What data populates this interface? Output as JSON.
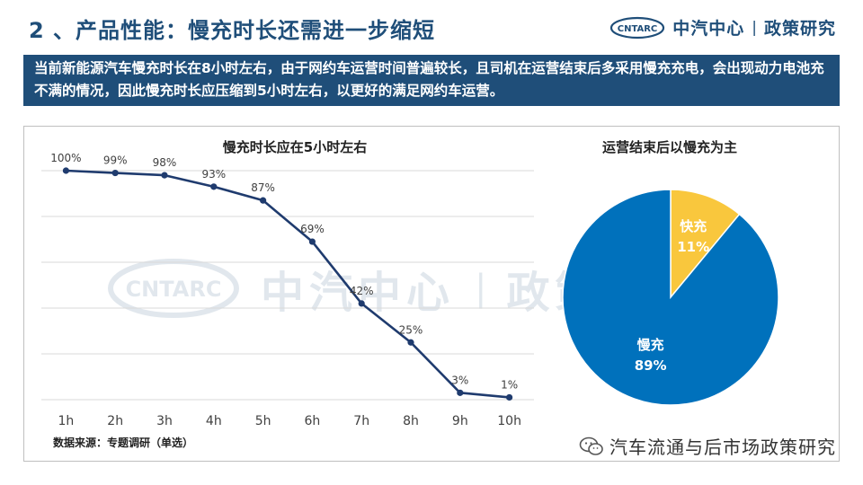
{
  "header": {
    "title": "2 、产品性能：慢充时长还需进一步缩短",
    "brand_logo_text": "CNTARC",
    "brand_name": "中汽中心",
    "brand_separator": "|",
    "brand_sub": "政策研究"
  },
  "banner": {
    "text": "当前新能源汽车慢充时长在8小时左右，由于网约车运营时间普遍较长，且司机在运营结束后多采用慢充充电，会出现动力电池充不满的情况，因此慢充时长应压缩到5小时左右，以更好的满足网约车运营。"
  },
  "watermark": {
    "logo_text": "CNTARC",
    "name": "中汽中心",
    "separator": "|",
    "sub": "政策研究"
  },
  "chart_data": [
    {
      "type": "line",
      "title": "慢充时长应在5小时左右",
      "categories": [
        "1h",
        "2h",
        "3h",
        "4h",
        "5h",
        "6h",
        "7h",
        "8h",
        "9h",
        "10h"
      ],
      "values": [
        100,
        99,
        98,
        93,
        87,
        69,
        42,
        25,
        3,
        1
      ],
      "value_labels": [
        "100%",
        "99%",
        "98%",
        "93%",
        "87%",
        "69%",
        "42%",
        "25%",
        "3%",
        "1%"
      ],
      "ylim": [
        0,
        100
      ],
      "grid": true,
      "line_color": "#1f3b6e"
    },
    {
      "type": "pie",
      "title": "运营结束后以慢充为主",
      "slices": [
        {
          "label": "快充",
          "value": 11,
          "value_label": "11%",
          "color": "#f9c73d"
        },
        {
          "label": "慢充",
          "value": 89,
          "value_label": "89%",
          "color": "#0071bc"
        }
      ]
    }
  ],
  "source": "数据来源：专题调研（单选）",
  "footer": {
    "icon": "wechat-icon",
    "text": "汽车流通与后市场政策研究"
  },
  "colors": {
    "primary": "#1f4e79",
    "line": "#1f3b6e",
    "pie_slow": "#0071bc",
    "pie_fast": "#f9c73d"
  }
}
